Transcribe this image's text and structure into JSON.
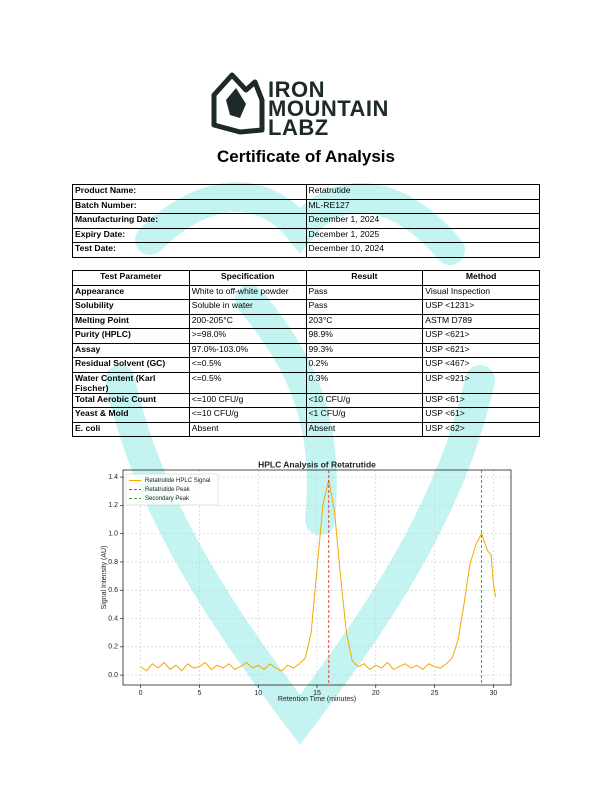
{
  "header": {
    "logo_lines": [
      "IRON",
      "MOUNTAIN",
      "LABZ"
    ],
    "title": "Certificate of Analysis"
  },
  "product_table": {
    "rows": [
      [
        "Product Name:",
        "Retatrutide"
      ],
      [
        "Batch Number:",
        "ML-RE127"
      ],
      [
        "Manufacturing Date:",
        "December 1, 2024"
      ],
      [
        "Expiry Date:",
        "December 1, 2025"
      ],
      [
        "Test Date:",
        "December 10, 2024"
      ]
    ]
  },
  "test_table": {
    "columns": [
      "Test Parameter",
      "Specification",
      "Result",
      "Method"
    ],
    "rows": [
      [
        "Appearance",
        "White to off-white powder",
        "Pass",
        "Visual Inspection"
      ],
      [
        "Solubility",
        "Soluble in water",
        "Pass",
        "USP <1231>"
      ],
      [
        "Melting Point",
        "200-205°C",
        "203°C",
        "ASTM D789"
      ],
      [
        "Purity (HPLC)",
        ">=98.0%",
        "98.9%",
        "USP <621>"
      ],
      [
        "Assay",
        "97.0%-103.0%",
        "99.3%",
        "USP <621>"
      ],
      [
        "Residual Solvent (GC)",
        "<=0.5%",
        "0.2%",
        "USP <467>"
      ],
      [
        "Water Content (Karl Fischer)",
        "<=0.5%",
        "0.3%",
        "USP <921>"
      ],
      [
        "Total Aerobic Count",
        "<=100 CFU/g",
        "<10 CFU/g",
        "USP <61>"
      ],
      [
        "Yeast & Mold",
        "<=10 CFU/g",
        "<1 CFU/g",
        "USP <61>"
      ],
      [
        "E. coli",
        "Absent",
        "Absent",
        "USP <62>"
      ]
    ]
  },
  "chart_data": {
    "type": "line",
    "title": "HPLC Analysis of Retatrutide",
    "xlabel": "Retention Time (minutes)",
    "ylabel": "Signal Intensity (AU)",
    "series": [
      {
        "name": "Retatrutide HPLC Signal",
        "color": "#f5a800",
        "x": [
          0,
          0.5,
          1,
          1.5,
          2,
          2.5,
          3,
          3.5,
          4,
          4.5,
          5,
          5.5,
          6,
          6.5,
          7,
          7.5,
          8,
          8.5,
          9,
          9.5,
          10,
          10.5,
          11,
          11.5,
          12,
          12.5,
          13,
          13.5,
          14,
          14.5,
          15,
          15.5,
          16,
          16.5,
          17,
          17.5,
          18,
          18.5,
          19,
          19.5,
          20,
          20.5,
          21,
          21.5,
          22,
          22.5,
          23,
          23.5,
          24,
          24.5,
          25,
          25.5,
          26,
          26.5,
          27,
          27.5,
          28,
          28.5,
          29,
          29.5,
          29.8,
          30,
          30.2
        ],
        "values": [
          0.06,
          0.03,
          0.08,
          0.05,
          0.09,
          0.04,
          0.07,
          0.03,
          0.08,
          0.05,
          0.06,
          0.09,
          0.04,
          0.07,
          0.05,
          0.08,
          0.04,
          0.06,
          0.09,
          0.05,
          0.07,
          0.04,
          0.08,
          0.05,
          0.03,
          0.07,
          0.05,
          0.08,
          0.12,
          0.3,
          0.75,
          1.2,
          1.38,
          1.15,
          0.7,
          0.3,
          0.1,
          0.06,
          0.08,
          0.04,
          0.07,
          0.05,
          0.09,
          0.04,
          0.06,
          0.08,
          0.05,
          0.07,
          0.04,
          0.08,
          0.06,
          0.05,
          0.08,
          0.12,
          0.25,
          0.5,
          0.78,
          0.92,
          1.0,
          0.88,
          0.85,
          0.65,
          0.55
        ]
      }
    ],
    "markers": [
      {
        "name": "Retatrutide Peak",
        "x": 16,
        "color": "#e03030"
      },
      {
        "name": "Secondary Peak",
        "x": 29,
        "color": "#3a9a3a"
      }
    ],
    "xlim": [
      -1.5,
      31.5
    ],
    "ylim": [
      -0.07,
      1.45
    ],
    "xticks": [
      0,
      5,
      10,
      15,
      20,
      25,
      30
    ],
    "yticks": [
      {
        "value": 0,
        "label": "0.0"
      },
      0.2,
      0.4,
      0.6,
      0.8,
      {
        "value": 1,
        "label": "1.0"
      },
      1.2,
      1.4
    ],
    "grid": true,
    "legend": "upper left"
  }
}
